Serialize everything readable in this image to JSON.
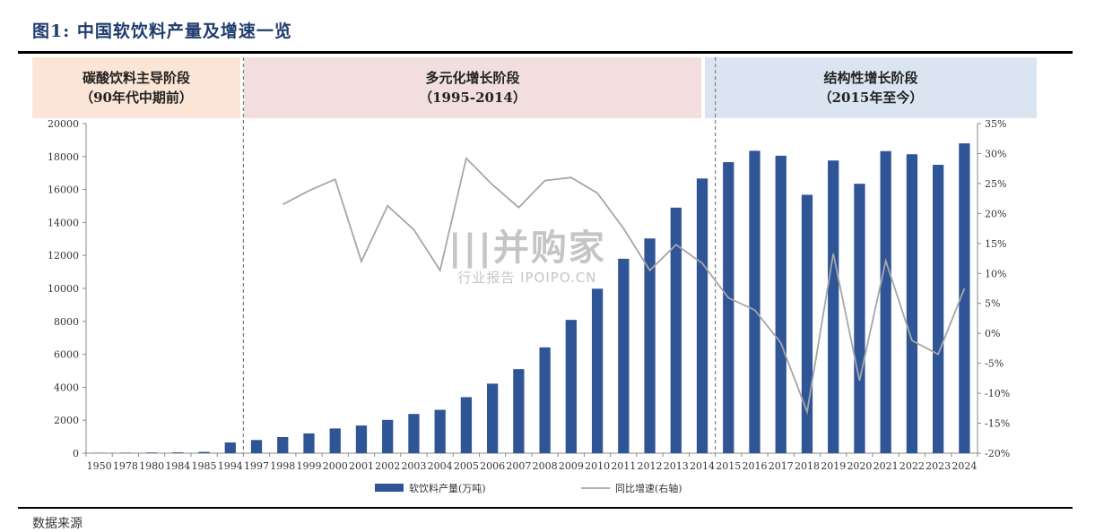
{
  "figure_title": "图1: 中国软饮料产量及增速一览",
  "phases": [
    {
      "name": "碳酸饮料主导阶段",
      "period": "（90年代中期前）"
    },
    {
      "name": "多元化增长阶段",
      "period": "（1995-2014）"
    },
    {
      "name": "结构性增长阶段",
      "period": "（2015年至今）"
    }
  ],
  "watermark": {
    "main": "|||并购家",
    "sub": "行业报告 IPOIPO.CN"
  },
  "source_text": "数据来源",
  "chart_data": {
    "type": "bar",
    "categories": [
      "1950",
      "1978",
      "1980",
      "1984",
      "1985",
      "1994",
      "1997",
      "1998",
      "1999",
      "2000",
      "2001",
      "2002",
      "2003",
      "2004",
      "2005",
      "2006",
      "2007",
      "2008",
      "2009",
      "2010",
      "2011",
      "2012",
      "2013",
      "2014",
      "2015",
      "2016",
      "2017",
      "2018",
      "2019",
      "2020",
      "2021",
      "2022",
      "2023",
      "2024"
    ],
    "series": [
      {
        "name": "软饮料产量(万吨)",
        "type": "bar",
        "axis": "left",
        "color": "#2f5597",
        "values": [
          20,
          30,
          40,
          50,
          80,
          650,
          800,
          980,
          1200,
          1500,
          1680,
          2020,
          2380,
          2630,
          3400,
          4220,
          5100,
          6420,
          8090,
          9980,
          11800,
          13030,
          14900,
          16670,
          17660,
          18350,
          18050,
          15680,
          17760,
          16350,
          18330,
          18140,
          17500,
          18800
        ]
      },
      {
        "name": "同比增速(右轴)",
        "type": "line",
        "axis": "right",
        "color": "#a6a6a6",
        "values": [
          null,
          null,
          null,
          null,
          null,
          null,
          null,
          21.5,
          23.8,
          25.7,
          12.0,
          21.3,
          17.3,
          10.5,
          29.2,
          24.8,
          21.0,
          25.5,
          26.0,
          23.4,
          17.5,
          10.5,
          14.8,
          11.7,
          5.9,
          3.9,
          -1.6,
          -13.1,
          13.3,
          -7.9,
          12.1,
          -1.2,
          -3.5,
          7.5
        ]
      }
    ],
    "left_axis": {
      "min": 0,
      "max": 20000,
      "step": 2000
    },
    "right_axis": {
      "min": -20,
      "max": 35,
      "step": 5,
      "suffix": "%"
    },
    "dividers_after": [
      "1994",
      "2014"
    ],
    "legend_position": "bottom"
  }
}
